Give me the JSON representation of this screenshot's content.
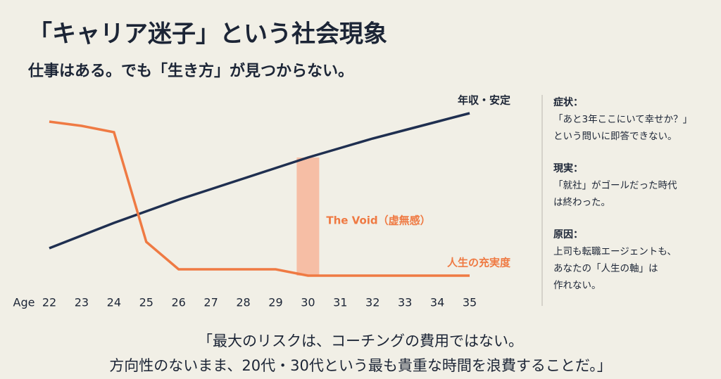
{
  "header": {
    "title": "「キャリア迷子」という社会現象",
    "subtitle": "仕事はある。でも「生き方」が見つからない。"
  },
  "chart_data": {
    "type": "line",
    "x_label": "Age",
    "x": [
      22,
      23,
      24,
      25,
      26,
      27,
      28,
      29,
      30,
      31,
      32,
      33,
      34,
      35
    ],
    "xlim": [
      22,
      35
    ],
    "xticks": [
      22,
      23,
      24,
      25,
      26,
      27,
      28,
      29,
      30,
      31,
      32,
      33,
      34,
      35
    ],
    "ylim": [
      0,
      100
    ],
    "series": [
      {
        "name": "年収・安定",
        "color": "#1f2f50",
        "values": [
          29,
          35,
          41,
          46.5,
          52,
          57,
          62,
          67,
          72,
          76.5,
          81,
          85,
          89,
          93
        ]
      },
      {
        "name": "人生の充実度",
        "color": "#ef7a43",
        "values": [
          89,
          87,
          84,
          32,
          19,
          19,
          19,
          19,
          16,
          16,
          16,
          16,
          16,
          16
        ]
      }
    ],
    "annotations": [
      {
        "text": "The Void（虚無感）",
        "x": 30,
        "color": "#f6bea5"
      }
    ]
  },
  "panel": {
    "sections": [
      {
        "heading": "症状：",
        "lines": [
          "「あと3年ここにいて幸せか？」",
          "という問いに即答できない。"
        ]
      },
      {
        "heading": "現実：",
        "lines": [
          "「就社」がゴールだった時代",
          "は終わった。"
        ]
      },
      {
        "heading": "原因：",
        "lines": [
          "上司も転職エージェントも、",
          "あなたの「人生の軸」は",
          "作れない。"
        ]
      }
    ]
  },
  "quote": {
    "lines": [
      "「最大のリスクは、コーチングの費用ではない。",
      "方向性のないまま、20代・30代という最も貴重な時間を浪費することだ。」"
    ]
  }
}
